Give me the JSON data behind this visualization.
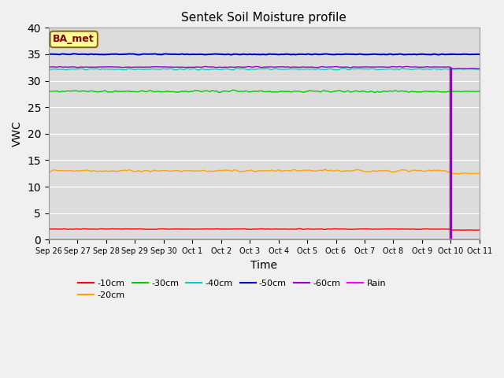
{
  "title": "Sentek Soil Moisture profile",
  "xlabel": "Time",
  "ylabel": "VWC",
  "ylim": [
    0,
    40
  ],
  "plot_bg_color": "#dcdcdc",
  "fig_bg_color": "#f0f0f0",
  "annotation_text": "BA_met",
  "annotation_color": "#8B0000",
  "annotation_bg": "#FFFF99",
  "annotation_edge": "#8B6914",
  "line_configs": {
    "-10cm": {
      "base": 2.0,
      "noise": 0.06,
      "color": "#ff0000",
      "lw": 1.0,
      "drop": 1.8
    },
    "-20cm": {
      "base": 13.0,
      "noise": 0.2,
      "color": "#ffa500",
      "lw": 1.0,
      "drop": 12.5
    },
    "-30cm": {
      "base": 28.0,
      "noise": 0.18,
      "color": "#00cc00",
      "lw": 1.0,
      "drop": 28.0
    },
    "-40cm": {
      "base": 32.2,
      "noise": 0.12,
      "color": "#00cccc",
      "lw": 1.0,
      "drop": 32.2
    },
    "-50cm": {
      "base": 35.0,
      "noise": 0.08,
      "color": "#0000cc",
      "lw": 1.5,
      "drop": 35.0
    },
    "-60cm": {
      "base": 32.6,
      "noise": 0.08,
      "color": "#9900cc",
      "lw": 1.0,
      "drop": 32.3
    }
  },
  "rain_color": "#ff00ff",
  "drop_day": 14.0,
  "total_days": 15,
  "n_points": 600,
  "yticks": [
    0,
    5,
    10,
    15,
    20,
    25,
    30,
    35,
    40
  ],
  "xtick_labels": [
    "Sep 26",
    "Sep 27",
    "Sep 28",
    "Sep 29",
    "Sep 30",
    "Oct 1",
    "Oct 2",
    "Oct 3",
    "Oct 4",
    "Oct 5",
    "Oct 6",
    "Oct 7",
    "Oct 8",
    "Oct 9",
    "Oct 10",
    "Oct 11"
  ],
  "legend_ncol": 6,
  "legend_fontsize": 8.0
}
